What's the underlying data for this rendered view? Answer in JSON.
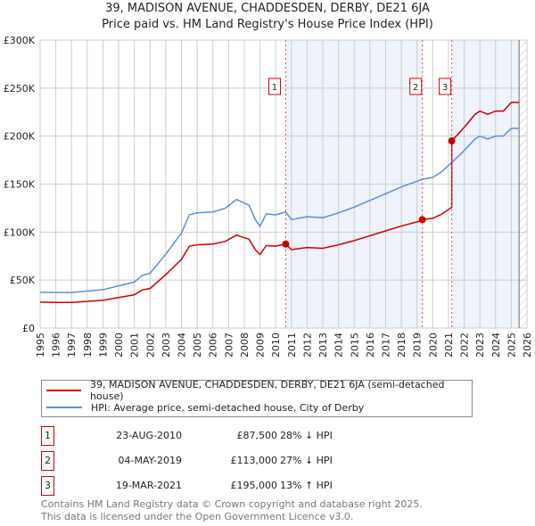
{
  "chart_data": {
    "type": "line",
    "title": "39, MADISON AVENUE, CHADDESDEN, DERBY, DE21 6JA",
    "subtitle": "Price paid vs. HM Land Registry's House Price Index (HPI)",
    "xlim": [
      1995,
      2026
    ],
    "ylim": [
      0,
      300000
    ],
    "yticks": [
      0,
      50000,
      100000,
      150000,
      200000,
      250000,
      300000
    ],
    "ytick_labels": [
      "£0",
      "£50K",
      "£100K",
      "£150K",
      "£200K",
      "£250K",
      "£300K"
    ],
    "xticks": [
      1995,
      1996,
      1997,
      1998,
      1999,
      2000,
      2001,
      2002,
      2003,
      2004,
      2005,
      2006,
      2007,
      2008,
      2009,
      2010,
      2011,
      2012,
      2013,
      2014,
      2015,
      2016,
      2017,
      2018,
      2019,
      2020,
      2021,
      2022,
      2023,
      2024,
      2025,
      2026
    ],
    "grid": true,
    "hatched_from": 2025.5,
    "colors": {
      "property": "#cc0000",
      "hpi": "#5b8fd6",
      "shade": "#eef3fc"
    },
    "series": [
      {
        "name": "HPI: Average price, semi-detached house, City of Derby",
        "x": [
          1995,
          1996,
          1997,
          1998,
          1999,
          2000,
          2001,
          2001.5,
          2002,
          2003,
          2004,
          2004.5,
          2005,
          2006,
          2006.8,
          2007.5,
          2008.3,
          2008.7,
          2009,
          2009.4,
          2010,
          2010.64,
          2011,
          2012,
          2013,
          2014,
          2015,
          2016,
          2017,
          2018,
          2019,
          2019.34,
          2020,
          2020.5,
          2021.21,
          2021.7,
          2022,
          2022.7,
          2023,
          2023.5,
          2024,
          2024.5,
          2025,
          2025.5
        ],
        "values": [
          37400,
          37000,
          37000,
          38500,
          40000,
          44000,
          48000,
          55000,
          57000,
          77000,
          99000,
          118000,
          120000,
          121000,
          125000,
          134000,
          128000,
          113000,
          106000,
          119000,
          118000,
          121000,
          113000,
          116000,
          115000,
          120000,
          126000,
          133000,
          140000,
          147000,
          153000,
          155000,
          157000,
          162000,
          172500,
          180000,
          185000,
          197000,
          200000,
          197000,
          200000,
          200000,
          208000,
          208000
        ]
      }
    ],
    "sales": [
      {
        "id": "1",
        "year": 2010.64,
        "price": 87500
      },
      {
        "id": "2",
        "year": 2019.34,
        "price": 113000
      },
      {
        "id": "3",
        "year": 2021.21,
        "price": 195000
      }
    ]
  },
  "legend": {
    "property": "39, MADISON AVENUE, CHADDESDEN, DERBY, DE21 6JA (semi-detached house)",
    "hpi": "HPI: Average price, semi-detached house, City of Derby"
  },
  "transactions": [
    {
      "num": "1",
      "date": "23-AUG-2010",
      "price": "£87,500",
      "hpi": "28% ↓ HPI"
    },
    {
      "num": "2",
      "date": "04-MAY-2019",
      "price": "£113,000",
      "hpi": "27% ↓ HPI"
    },
    {
      "num": "3",
      "date": "19-MAR-2021",
      "price": "£195,000",
      "hpi": "13% ↑ HPI"
    }
  ],
  "footer": {
    "line1": "Contains HM Land Registry data © Crown copyright and database right 2025.",
    "line2": "This data is licensed under the Open Government Licence v3.0."
  }
}
